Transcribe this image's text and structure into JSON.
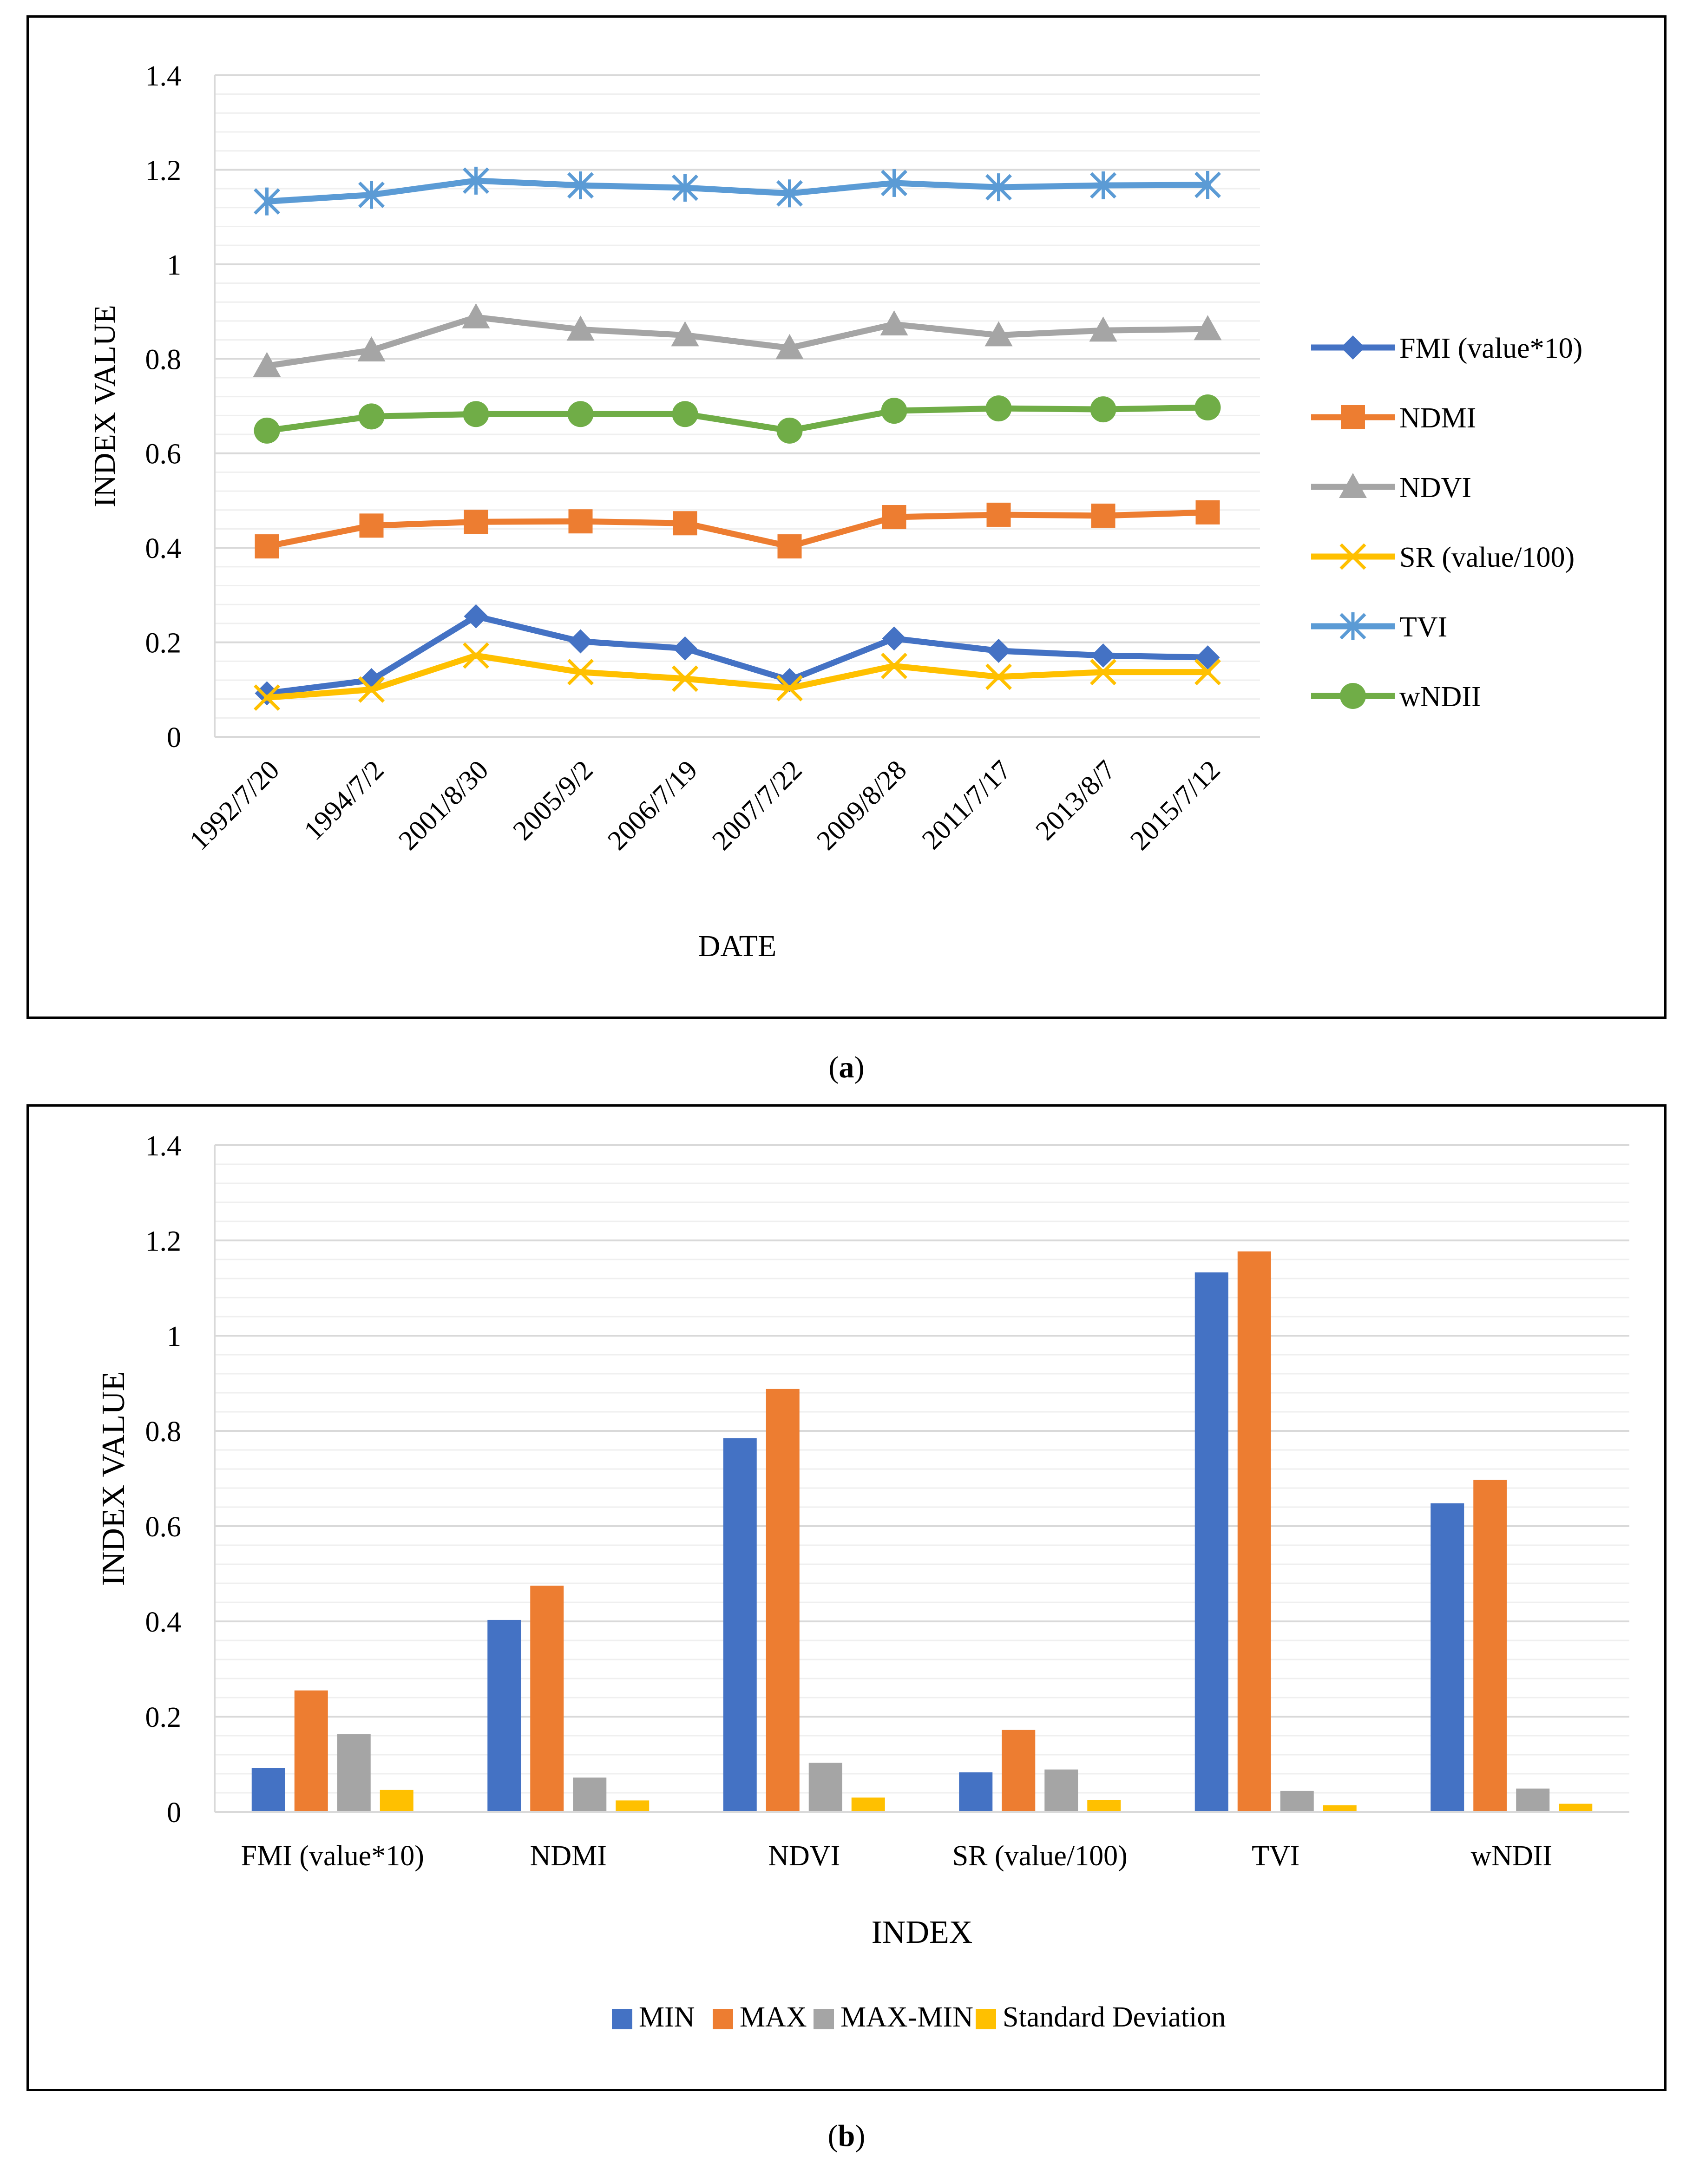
{
  "chart_data": [
    {
      "type": "line",
      "panel": "a",
      "xlabel": "DATE",
      "ylabel": "INDEX VALUE",
      "ylim": [
        0,
        1.4
      ],
      "ytick_step": 0.2,
      "grid": true,
      "legend_position": "right",
      "categories": [
        "1992/7/20",
        "1994/7/2",
        "2001/8/30",
        "2005/9/2",
        "2006/7/19",
        "2007/7/22",
        "2009/8/28",
        "2011/7/17",
        "2013/8/7",
        "2015/7/12"
      ],
      "series": [
        {
          "name": "FMI (value*10)",
          "color": "#4472C4",
          "marker": "diamond",
          "values": [
            0.092,
            0.12,
            0.255,
            0.202,
            0.187,
            0.12,
            0.208,
            0.182,
            0.172,
            0.168
          ]
        },
        {
          "name": "NDMI",
          "color": "#ED7D31",
          "marker": "square",
          "values": [
            0.403,
            0.447,
            0.455,
            0.456,
            0.452,
            0.403,
            0.465,
            0.47,
            0.468,
            0.475
          ]
        },
        {
          "name": "NDVI",
          "color": "#A5A5A5",
          "marker": "triangle",
          "values": [
            0.785,
            0.818,
            0.888,
            0.862,
            0.85,
            0.823,
            0.873,
            0.85,
            0.86,
            0.863
          ]
        },
        {
          "name": "SR (value/100)",
          "color": "#FFC000",
          "marker": "x",
          "values": [
            0.083,
            0.1,
            0.172,
            0.137,
            0.123,
            0.103,
            0.15,
            0.127,
            0.137,
            0.137
          ]
        },
        {
          "name": "TVI",
          "color": "#5B9BD5",
          "marker": "star",
          "values": [
            1.133,
            1.147,
            1.177,
            1.167,
            1.162,
            1.15,
            1.172,
            1.163,
            1.167,
            1.168
          ]
        },
        {
          "name": "wNDII",
          "color": "#70AD47",
          "marker": "circle",
          "values": [
            0.648,
            0.678,
            0.683,
            0.683,
            0.683,
            0.648,
            0.69,
            0.695,
            0.693,
            0.697
          ]
        }
      ]
    },
    {
      "type": "bar",
      "panel": "b",
      "xlabel": "INDEX",
      "ylabel": "INDEX VALUE",
      "ylim": [
        0,
        1.4
      ],
      "ytick_step": 0.2,
      "grid": true,
      "legend_position": "bottom",
      "categories": [
        "FMI (value*10)",
        "NDMI",
        "NDVI",
        "SR (value/100)",
        "TVI",
        "wNDII"
      ],
      "series": [
        {
          "name": "MIN",
          "color": "#4472C4",
          "values": [
            0.092,
            0.403,
            0.785,
            0.083,
            1.133,
            0.648
          ]
        },
        {
          "name": "MAX",
          "color": "#ED7D31",
          "values": [
            0.255,
            0.475,
            0.888,
            0.172,
            1.177,
            0.697
          ]
        },
        {
          "name": "MAX-MIN",
          "color": "#A5A5A5",
          "values": [
            0.163,
            0.072,
            0.103,
            0.089,
            0.044,
            0.049
          ]
        },
        {
          "name": "Standard Deviation",
          "color": "#FFC000",
          "values": [
            0.046,
            0.024,
            0.03,
            0.025,
            0.014,
            0.017
          ]
        }
      ]
    }
  ],
  "captions": {
    "a": "a",
    "b": "b"
  }
}
